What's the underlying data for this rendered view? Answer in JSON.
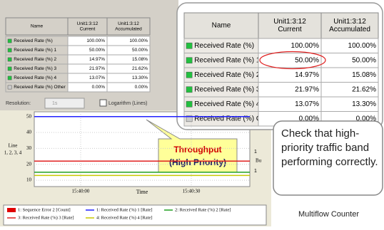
{
  "window": {
    "table": {
      "columns": [
        "Name",
        [
          "Unit1:3:12",
          "Current"
        ],
        [
          "Unit1:3:12",
          "Accumulated"
        ]
      ],
      "rows": [
        [
          "Received Rate (%)",
          "100.00%",
          "100.00%"
        ],
        [
          "Received Rate (%) 1",
          "50.00%",
          "50.00%"
        ],
        [
          "Received Rate (%) 2",
          "14.97%",
          "15.08%"
        ],
        [
          "Received Rate (%) 3",
          "21.97%",
          "21.62%"
        ],
        [
          "Received Rate (%) 4",
          "13.07%",
          "13.30%"
        ],
        [
          "Received Rate (%) Other",
          "0.00%",
          "0.00%"
        ]
      ]
    },
    "controls": {
      "resolution_label": "Resolution:",
      "resolution_value": "1s",
      "log_checkbox": "Logarithm (Lines)"
    }
  },
  "chart_data": {
    "type": "line",
    "ylabel": [
      "Line",
      "1, 2, 3, 4"
    ],
    "xlabel": "Time",
    "y2label": "Bu",
    "right_labels": [
      "1",
      "1"
    ],
    "x": [
      null,
      "15:40:00",
      "15:40:30",
      null
    ],
    "ylim": [
      6,
      53
    ],
    "yticks": [
      10,
      20,
      30,
      40,
      50
    ],
    "grid": true,
    "series": [
      {
        "name": "1: Sequence Error 2 [Count]",
        "color": "#e00000",
        "values": [
          null,
          null,
          null,
          null
        ]
      },
      {
        "name": "1: Received Rate (%) 1 [Rate]",
        "color": "#2020ff",
        "values": [
          50,
          50,
          50,
          50
        ]
      },
      {
        "name": "2: Received Rate (%) 2 [Rate]",
        "color": "#20a020",
        "values": [
          15,
          15,
          15,
          15
        ]
      },
      {
        "name": "3: Received Rate (%) 3 [Rate]",
        "color": "#e02020",
        "values": [
          22,
          22,
          22,
          22
        ]
      },
      {
        "name": "4: Received Rate (%) 4 [Rate]",
        "color": "#c8c800",
        "values": [
          13,
          13,
          13,
          13
        ]
      }
    ]
  },
  "callout": {
    "title": "Throughput",
    "subtitle": "(High Priority)"
  },
  "note": "Check that high-priority traffic band performing correctly.",
  "footer": "Multiflow Counter"
}
